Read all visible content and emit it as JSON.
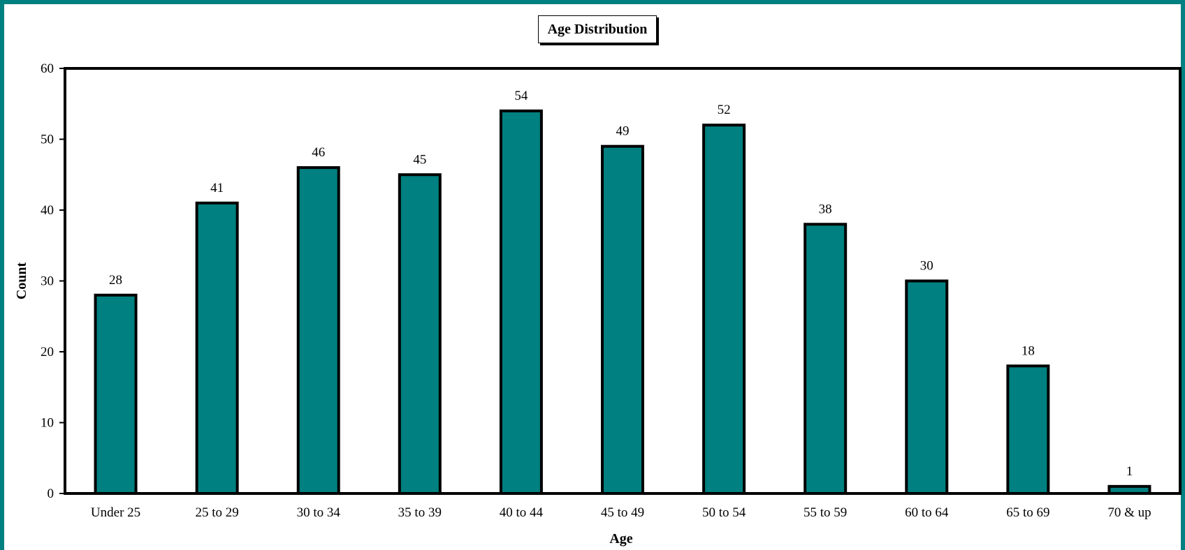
{
  "chart_data": {
    "type": "bar",
    "title": "Age Distribution",
    "xlabel": "Age",
    "ylabel": "Count",
    "categories": [
      "Under 25",
      "25 to 29",
      "30 to 34",
      "35 to 39",
      "40 to 44",
      "45 to 49",
      "50 to 54",
      "55 to 59",
      "60 to 64",
      "65 to 69",
      "70 & up"
    ],
    "values": [
      28,
      41,
      46,
      45,
      54,
      49,
      52,
      38,
      30,
      18,
      1
    ],
    "ylim": [
      0,
      60
    ],
    "yticks": [
      0,
      10,
      20,
      30,
      40,
      50,
      60
    ],
    "grid": false,
    "legend": "none",
    "colors": {
      "bar": "#008080",
      "frame": "#008080",
      "outline": "#000000"
    }
  }
}
